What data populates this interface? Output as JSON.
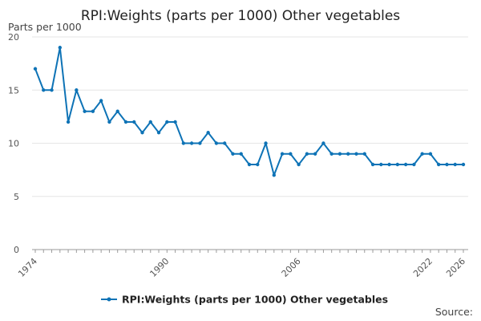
{
  "chart_data": {
    "type": "line",
    "title": "RPI:Weights (parts per 1000) Other vegetables",
    "ylabel": "Parts per 1000",
    "xlabel": "",
    "xlim": [
      1974,
      2026
    ],
    "ylim": [
      0,
      20
    ],
    "y_ticks": [
      0,
      5,
      10,
      15,
      20
    ],
    "x_tick_labels": [
      "1974",
      "1990",
      "2006",
      "2022",
      "2026"
    ],
    "grid": true,
    "legend_position": "bottom",
    "series": [
      {
        "name": "RPI:Weights (parts per 1000) Other vegetables",
        "color": "#0e73b6",
        "x": [
          1974,
          1975,
          1976,
          1977,
          1978,
          1979,
          1980,
          1981,
          1982,
          1983,
          1984,
          1985,
          1986,
          1987,
          1988,
          1989,
          1990,
          1991,
          1992,
          1993,
          1994,
          1995,
          1996,
          1997,
          1998,
          1999,
          2000,
          2001,
          2002,
          2003,
          2004,
          2005,
          2006,
          2007,
          2008,
          2009,
          2010,
          2011,
          2012,
          2013,
          2014,
          2015,
          2016,
          2017,
          2018,
          2019,
          2020,
          2021,
          2022,
          2023,
          2024,
          2025,
          2026
        ],
        "values": [
          17,
          15,
          15,
          19,
          12,
          15,
          13,
          13,
          14,
          12,
          13,
          12,
          12,
          11,
          12,
          11,
          12,
          12,
          10,
          10,
          10,
          11,
          10,
          10,
          9,
          9,
          8,
          8,
          10,
          7,
          9,
          9,
          8,
          9,
          9,
          10,
          9,
          9,
          9,
          9,
          9,
          8,
          8,
          8,
          8,
          8,
          8,
          9,
          9,
          8,
          8,
          8,
          8
        ]
      }
    ],
    "source_label": "Source:"
  }
}
